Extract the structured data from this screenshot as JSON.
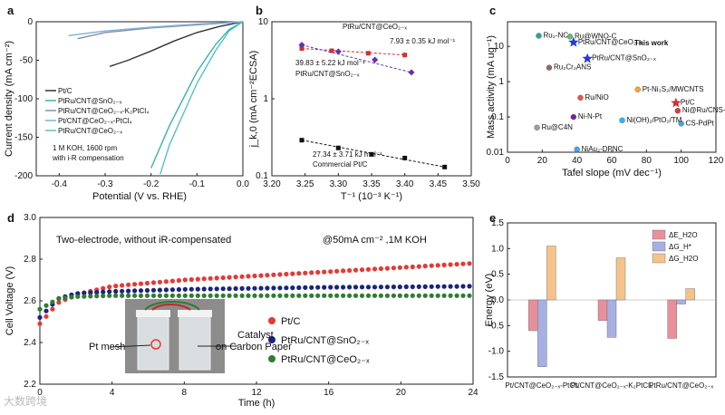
{
  "watermark": "大数跨境",
  "chart_data": [
    {
      "panel": "a",
      "type": "line",
      "xlabel": "Potential (V vs. RHE)",
      "ylabel": "Current density (mA cm⁻²)",
      "xlim": [
        -0.45,
        0.0
      ],
      "ylim": [
        -200,
        0
      ],
      "xticks": [
        "-0.4",
        "-0.3",
        "-0.2",
        "-0.1",
        "0.0"
      ],
      "yticks": [
        "0",
        "-50",
        "-100",
        "-150",
        "-200"
      ],
      "annotation": [
        "1 M KOH, 1600 rpm",
        "with i-R compensation"
      ],
      "legend_placement": "middle-left",
      "series": [
        {
          "name": "Pt/C",
          "color": "#333333",
          "x": [
            0,
            -0.05,
            -0.1,
            -0.15,
            -0.2,
            -0.25,
            -0.29
          ],
          "y": [
            0,
            -6,
            -14,
            -25,
            -38,
            -50,
            -58
          ]
        },
        {
          "name": "PtRu/CNT@SnO₂₋ₓ",
          "color": "#3bb3a8",
          "x": [
            0,
            -0.03,
            -0.06,
            -0.1,
            -0.13,
            -0.16,
            -0.2
          ],
          "y": [
            0,
            -10,
            -30,
            -65,
            -100,
            -135,
            -190
          ]
        },
        {
          "name": "PtRu/CNT@CeO₂₋ₓ-K₂PtCl₄",
          "color": "#8a8aa8",
          "x": [
            0,
            -0.1,
            -0.2,
            -0.3,
            -0.36
          ],
          "y": [
            0,
            -4,
            -8,
            -14,
            -22
          ]
        },
        {
          "name": "Pt/CNT@CeO₂₋ₓ-PtCl₄",
          "color": "#7ab3d8",
          "x": [
            0,
            -0.1,
            -0.2,
            -0.3,
            -0.38
          ],
          "y": [
            0,
            -3,
            -7,
            -12,
            -18
          ]
        },
        {
          "name": "PtRu/CNT@CeO₂₋ₓ",
          "color": "#55c0c8",
          "x": [
            0,
            -0.03,
            -0.06,
            -0.1,
            -0.13,
            -0.16,
            -0.18
          ],
          "y": [
            0,
            -12,
            -38,
            -80,
            -120,
            -160,
            -198
          ]
        }
      ]
    },
    {
      "panel": "b",
      "type": "scatter",
      "xlabel": "T⁻¹ (10⁻³ K⁻¹)",
      "ylabel": "j_k,0 (mA cm⁻²ECSA)",
      "xlim": [
        3.2,
        3.5
      ],
      "ylim_log": [
        0.1,
        10
      ],
      "yscale": "log",
      "xticks": [
        "3.20",
        "3.25",
        "3.30",
        "3.35",
        "3.40",
        "3.45",
        "3.50"
      ],
      "yticks": [
        "0.1",
        "1",
        "10"
      ],
      "series": [
        {
          "name": "PtRu/CNT@CeO₂₋ₓ",
          "color": "#d32f2f",
          "x": [
            3.245,
            3.29,
            3.345,
            3.4
          ],
          "y": [
            4.5,
            4.2,
            3.9,
            3.7
          ],
          "label_lines": [
            "PtRu/CNT@CeO₂₋ₓ",
            "7.93 ± 0.35 kJ mol⁻¹"
          ]
        },
        {
          "name": "PtRu/CNT@SnO₂₋ₓ",
          "color": "#5e35b1",
          "x": [
            3.245,
            3.3,
            3.355,
            3.41
          ],
          "y": [
            5.0,
            4.1,
            3.2,
            2.2
          ],
          "label_lines": [
            "39.83 ± 5.22 kJ mol⁻¹",
            "PtRu/CNT@SnO₂₋ₓ"
          ]
        },
        {
          "name": "Commercial Pt/C",
          "color": "#111111",
          "x": [
            3.245,
            3.3,
            3.35,
            3.4,
            3.46
          ],
          "y": [
            0.29,
            0.23,
            0.19,
            0.17,
            0.13
          ],
          "label_lines": [
            "27.34 ± 3.71 kJ mol⁻¹",
            "Commercial Pt/C"
          ]
        }
      ]
    },
    {
      "panel": "c",
      "type": "scatter",
      "xlabel": "Tafel slope (mV dec⁻¹)",
      "ylabel": "Mass activity (mA ug⁻¹)",
      "xlim": [
        0,
        120
      ],
      "ylim_log": [
        0.01,
        50
      ],
      "yscale": "log",
      "xticks": [
        "0",
        "20",
        "40",
        "60",
        "80",
        "100",
        "120"
      ],
      "yticks": [
        "0.01",
        "0.1",
        "1",
        "10"
      ],
      "highlight_label": "This work",
      "points": [
        {
          "label": "Ru₂-NC",
          "x": 18,
          "y": 20,
          "color": "#26a69a",
          "shape": "circle"
        },
        {
          "label": "Ru@WNO-C",
          "x": 36,
          "y": 19,
          "color": "#66bb6a",
          "shape": "circle"
        },
        {
          "label": "PtRu/CNT@CeO₂₋ₓ",
          "x": 38,
          "y": 13,
          "color": "#1e3ad8",
          "shape": "star"
        },
        {
          "label": "PtRu/CNT@SnO₂₋ₓ",
          "x": 46,
          "y": 4.5,
          "color": "#1e3ad8",
          "shape": "star"
        },
        {
          "label": "Ru₂Cr₂ANS",
          "x": 24,
          "y": 2.5,
          "color": "#8d6e63",
          "shape": "circle"
        },
        {
          "label": "Pt/C",
          "x": 97,
          "y": 0.25,
          "color": "#d32f2f",
          "shape": "star"
        },
        {
          "label": "Pt-Ni₃S₂/MWCNTS",
          "x": 75,
          "y": 0.6,
          "color": "#ffa726",
          "shape": "circle"
        },
        {
          "label": "Ni@Ru/CNS-10%",
          "x": 98,
          "y": 0.15,
          "color": "#e53935",
          "shape": "circle"
        },
        {
          "label": "CS-PdPt",
          "x": 100,
          "y": 0.065,
          "color": "#42a5f5",
          "shape": "circle"
        },
        {
          "label": "Ru@C4N",
          "x": 17,
          "y": 0.05,
          "color": "#9e9e9e",
          "shape": "circle"
        },
        {
          "label": "NiAu₂-DPNC",
          "x": 40,
          "y": 0.012,
          "color": "#42a5f5",
          "shape": "circle"
        },
        {
          "label": "Ni-N-Pt",
          "x": 38,
          "y": 0.1,
          "color": "#7b1fa2",
          "shape": "circle"
        },
        {
          "label": "Ru/NiO",
          "x": 42,
          "y": 0.35,
          "color": "#ef5350",
          "shape": "circle"
        },
        {
          "label": "Ni(OH)₂/PtO₂/TM",
          "x": 66,
          "y": 0.08,
          "color": "#29b6f6",
          "shape": "circle"
        }
      ]
    },
    {
      "panel": "d",
      "type": "line",
      "xlabel": "Time (h)",
      "ylabel": "Cell Voltage (V)",
      "xlim": [
        0,
        24
      ],
      "ylim": [
        2.2,
        3.0
      ],
      "xticks": [
        "0",
        "4",
        "8",
        "12",
        "16",
        "20",
        "24"
      ],
      "yticks": [
        "2.2",
        "2.4",
        "2.6",
        "2.8",
        "3.0"
      ],
      "header_left": "Two-electrode, without iR-compensated",
      "header_right": "@50mA cm⁻² ,1M KOH",
      "photo_labels": [
        "Pt mesh",
        "Catalyst",
        "on Carbon Paper"
      ],
      "legend_placement": "center-right",
      "series": [
        {
          "name": "Pt/C",
          "color": "#e53935",
          "x": [
            0,
            1,
            2,
            4,
            8,
            12,
            16,
            20,
            24
          ],
          "y": [
            2.49,
            2.59,
            2.63,
            2.67,
            2.7,
            2.72,
            2.74,
            2.76,
            2.78
          ]
        },
        {
          "name": "PtRu/CNT@SnO₂₋ₓ",
          "color": "#1a237e",
          "x": [
            0,
            1,
            2,
            4,
            8,
            12,
            16,
            20,
            24
          ],
          "y": [
            2.52,
            2.61,
            2.635,
            2.645,
            2.655,
            2.66,
            2.665,
            2.667,
            2.67
          ]
        },
        {
          "name": "PtRu/CNT@CeO₂₋ₓ",
          "color": "#2e7d32",
          "x": [
            0,
            1,
            2,
            4,
            8,
            12,
            16,
            20,
            24
          ],
          "y": [
            2.56,
            2.61,
            2.62,
            2.625,
            2.625,
            2.625,
            2.625,
            2.625,
            2.625
          ]
        }
      ]
    },
    {
      "panel": "e",
      "type": "bar",
      "xlabel": "",
      "ylabel": "Energy (eV)",
      "ylim": [
        -1.5,
        1.5
      ],
      "yticks": [
        "-1.5",
        "-1.0",
        "-0.5",
        "0.0",
        "0.5",
        "1.0",
        "1.5"
      ],
      "categories": [
        "Pt/CNT@CeO₂₋ₓ-PtCl₄",
        "Pt/CNT@CeO₂₋ₓ-K₂PtCl₄",
        "PtRu/CNT@CeO₂₋ₓ"
      ],
      "legend_placement": "top-right",
      "series": [
        {
          "name": "ΔE_H2O",
          "color": "#e7909c",
          "values": [
            -0.6,
            -0.4,
            -0.75
          ]
        },
        {
          "name": "ΔG_H*",
          "color": "#a7b0e0",
          "values": [
            -1.3,
            -0.73,
            -0.08
          ]
        },
        {
          "name": "ΔG_H2O",
          "color": "#f5c38a",
          "values": [
            1.05,
            0.82,
            0.22
          ]
        }
      ]
    }
  ]
}
